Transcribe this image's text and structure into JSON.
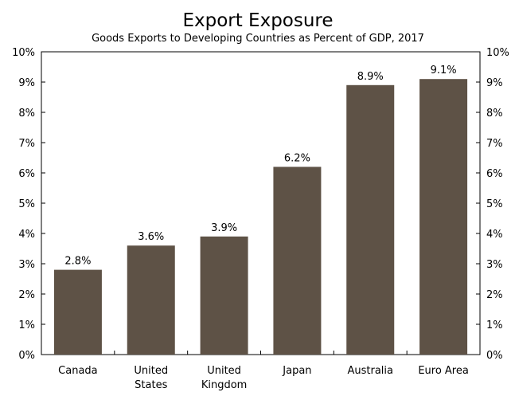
{
  "chart_data": {
    "type": "bar",
    "title": "Export Exposure",
    "subtitle": "Goods Exports to Developing Countries as Percent of GDP, 2017",
    "categories": [
      [
        "Canada"
      ],
      [
        "United",
        "States"
      ],
      [
        "United",
        "Kingdom"
      ],
      [
        "Japan"
      ],
      [
        "Australia"
      ],
      [
        "Euro Area"
      ]
    ],
    "values": [
      2.8,
      3.6,
      3.9,
      6.2,
      8.9,
      9.1
    ],
    "data_labels": [
      "2.8%",
      "3.6%",
      "3.9%",
      "6.2%",
      "8.9%",
      "9.1%"
    ],
    "ylim": [
      0,
      10
    ],
    "yticks": [
      "0%",
      "1%",
      "2%",
      "3%",
      "4%",
      "5%",
      "6%",
      "7%",
      "8%",
      "9%",
      "10%"
    ],
    "grid": false,
    "bar_color": "#5e5246",
    "xlabel": "",
    "ylabel": ""
  }
}
